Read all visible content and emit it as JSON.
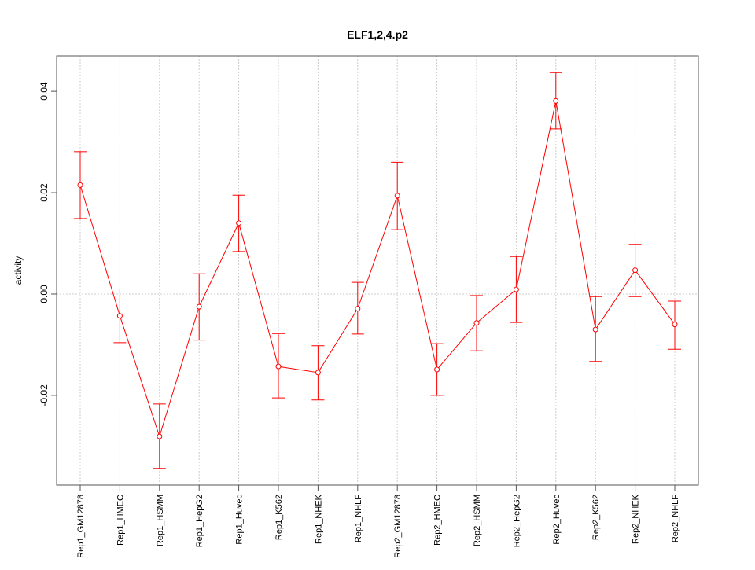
{
  "chart_data": {
    "type": "line",
    "title": "ELF1,2,4.p2",
    "xlabel": "",
    "ylabel": "activity",
    "ylim": [
      -0.0377,
      0.047
    ],
    "yticks": [
      -0.02,
      0.0,
      0.02,
      0.04
    ],
    "ytick_labels": [
      "-0.02",
      "0.00",
      "0.02",
      "0.04"
    ],
    "grid": "vertical dotted at categories, horizontal dotted at 0",
    "color": "#ff0000",
    "categories": [
      "Rep1_GM12878",
      "Rep1_HMEC",
      "Rep1_HSMM",
      "Rep1_HepG2",
      "Rep1_Huvec",
      "Rep1_K562",
      "Rep1_NHEK",
      "Rep1_NHLF",
      "Rep2_GM12878",
      "Rep2_HMEC",
      "Rep2_HSMM",
      "Rep2_HepG2",
      "Rep2_Huvec",
      "Rep2_K562",
      "Rep2_NHEK",
      "Rep2_NHLF"
    ],
    "values": [
      0.0215,
      -0.0043,
      -0.0281,
      -0.0025,
      0.014,
      -0.0143,
      -0.0155,
      -0.0029,
      0.0194,
      -0.0149,
      -0.0057,
      0.0009,
      0.0381,
      -0.007,
      0.0047,
      -0.006
    ],
    "upper": [
      0.0281,
      0.001,
      -0.0217,
      0.004,
      0.0195,
      -0.0078,
      -0.0102,
      0.0023,
      0.026,
      -0.0098,
      -0.0003,
      0.0074,
      0.0437,
      -0.0005,
      0.0098,
      -0.0014
    ],
    "lower": [
      0.0149,
      -0.0096,
      -0.0344,
      -0.0091,
      0.0084,
      -0.0205,
      -0.0209,
      -0.0079,
      0.0127,
      -0.02,
      -0.0112,
      -0.0056,
      0.0326,
      -0.0133,
      -0.0005,
      -0.0109
    ]
  }
}
